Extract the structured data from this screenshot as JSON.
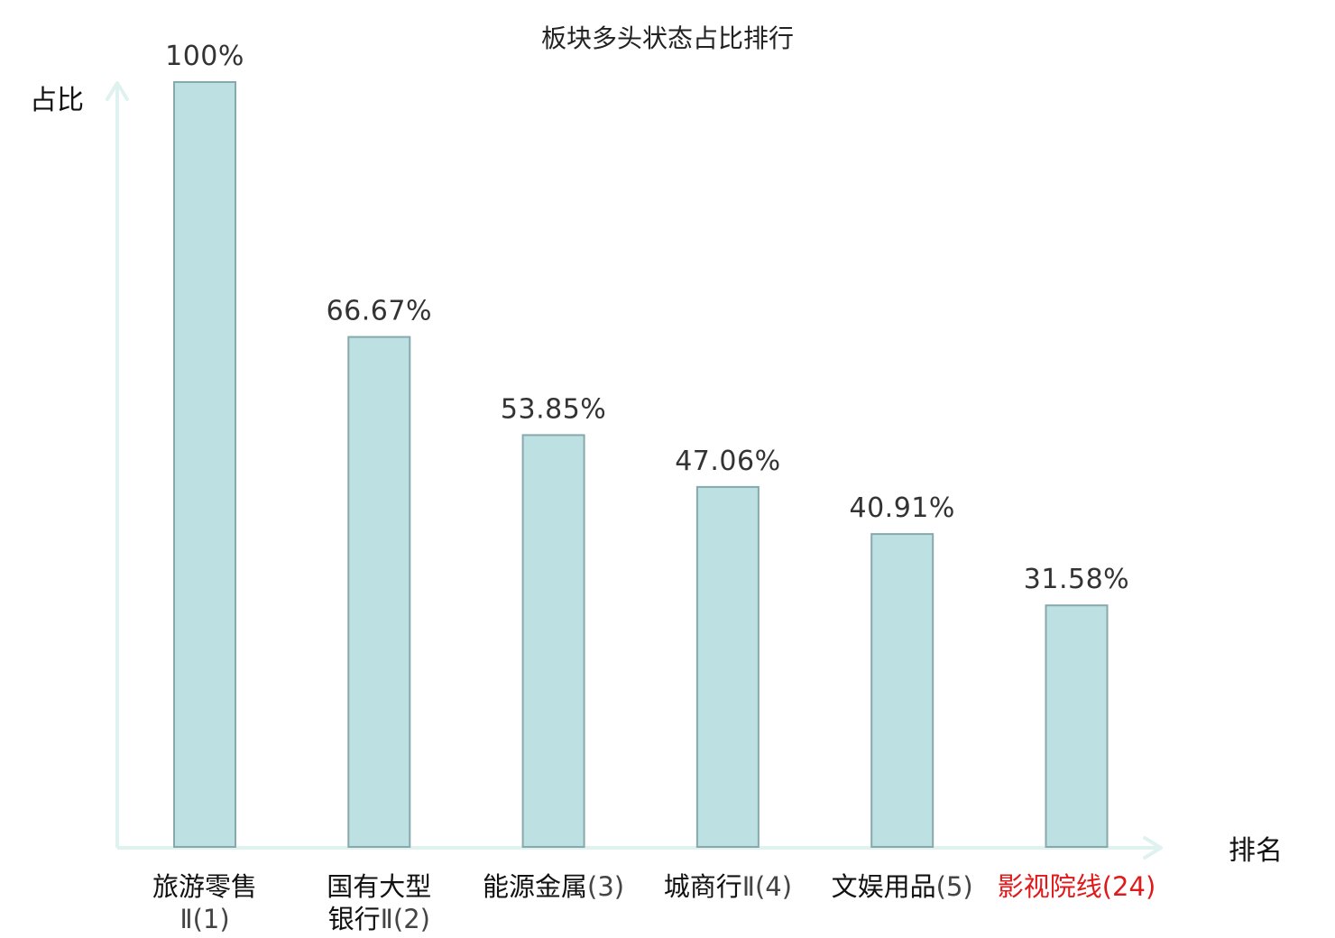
{
  "chart_data": {
    "type": "bar",
    "title": "板块多头状态占比排行",
    "ylabel": "占比",
    "xlabel": "排名",
    "ylim": [
      0,
      100
    ],
    "grid": false,
    "categories": [
      {
        "lines": [
          {
            "name": "旅游零售",
            "rank": ""
          },
          {
            "name": "",
            "rank": "Ⅱ(1)"
          }
        ],
        "highlight": false
      },
      {
        "lines": [
          {
            "name": "国有大型",
            "rank": ""
          },
          {
            "name": "银行",
            "rank": "Ⅱ(2)"
          }
        ],
        "highlight": false
      },
      {
        "lines": [
          {
            "name": "能源金属",
            "rank": "(3)"
          }
        ],
        "highlight": false
      },
      {
        "lines": [
          {
            "name": "城商行",
            "rank": "Ⅱ(4)"
          }
        ],
        "highlight": false
      },
      {
        "lines": [
          {
            "name": "文娱用品",
            "rank": "(5)"
          }
        ],
        "highlight": false
      },
      {
        "lines": [
          {
            "name": "影视院线",
            "rank": "(24)"
          }
        ],
        "highlight": true
      }
    ],
    "values": [
      100,
      66.67,
      53.85,
      47.06,
      40.91,
      31.58
    ],
    "value_labels": [
      "100%",
      "66.67%",
      "53.85%",
      "47.06%",
      "40.91%",
      "31.58%"
    ],
    "colors": {
      "bar_fill": "#bde0e2",
      "bar_stroke": "#87a9ac",
      "axis": "#dff2ef",
      "highlight": "#e0191b"
    }
  }
}
